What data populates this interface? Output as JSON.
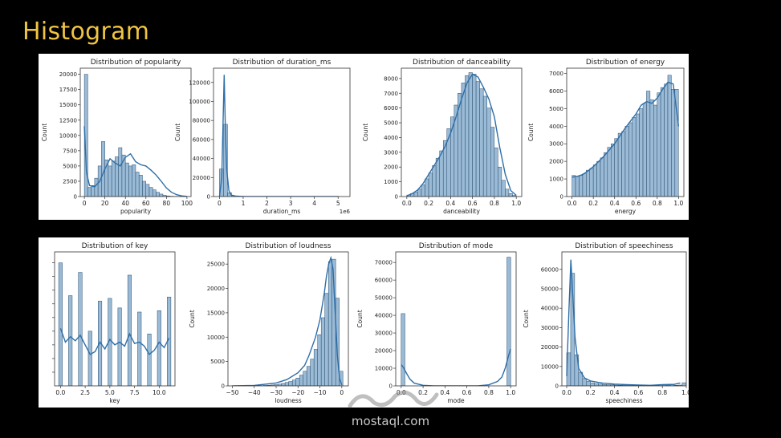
{
  "slide": {
    "title": "Histogram",
    "watermark": "mostaql.com"
  },
  "colors": {
    "bar_fill": "#8fb3d0",
    "bar_stroke": "#2a4f6e",
    "kde": "#2e6ea8",
    "title": "#f0c443"
  },
  "chart_data": [
    {
      "type": "bar",
      "title": "Distribution of popularity",
      "xlabel": "popularity",
      "ylabel": "Count",
      "xlim": [
        -4,
        104
      ],
      "ylim": [
        0,
        21000
      ],
      "xticks": [
        0,
        20,
        40,
        60,
        80,
        100
      ],
      "xticklabels": [
        "0",
        "20",
        "40",
        "60",
        "80",
        "100"
      ],
      "yticks": [
        0,
        2500,
        5000,
        7500,
        10000,
        12500,
        15000,
        17500,
        20000
      ],
      "yticklabels": [
        "0",
        "2500",
        "5000",
        "7500",
        "10000",
        "12500",
        "15000",
        "17500",
        "20000"
      ],
      "bin_start": 0,
      "bin_width": 3.33,
      "values": [
        20000,
        1500,
        1800,
        3000,
        5000,
        9000,
        6000,
        5000,
        5800,
        6500,
        8000,
        6800,
        5500,
        5000,
        5200,
        4000,
        3500,
        2500,
        2000,
        1500,
        1100,
        700,
        400,
        200,
        100,
        50,
        20,
        10,
        5,
        2
      ],
      "kde": {
        "x": [
          0,
          2,
          5,
          10,
          15,
          20,
          25,
          30,
          35,
          40,
          45,
          50,
          55,
          60,
          65,
          70,
          75,
          80,
          85,
          90,
          95,
          100
        ],
        "y": [
          11500,
          4000,
          1800,
          1600,
          2500,
          4500,
          6200,
          5500,
          5000,
          6400,
          7000,
          5700,
          5200,
          5000,
          4300,
          3500,
          2500,
          1400,
          700,
          300,
          100,
          20
        ]
      }
    },
    {
      "type": "bar",
      "title": "Distribution of duration_ms",
      "xlabel": "duration_ms",
      "ylabel": "Count",
      "offset_label": "1e6",
      "xlim": [
        -0.25,
        5.5
      ],
      "ylim": [
        0,
        135000
      ],
      "xticks": [
        0,
        1,
        2,
        3,
        4,
        5
      ],
      "xticklabels": [
        "0",
        "1",
        "2",
        "3",
        "4",
        "5"
      ],
      "yticks": [
        0,
        20000,
        40000,
        60000,
        80000,
        100000,
        120000
      ],
      "yticklabels": [
        "0",
        "20000",
        "40000",
        "60000",
        "80000",
        "100000",
        "120000"
      ],
      "bin_start": 0,
      "bin_width": 0.17,
      "values": [
        29000,
        76000,
        4000,
        400,
        100,
        30,
        10,
        5,
        3,
        2,
        1,
        1,
        1,
        1,
        1,
        1,
        1,
        1,
        1,
        1,
        1,
        1,
        1,
        1,
        1,
        1,
        1,
        1,
        1,
        1
      ],
      "kde": {
        "x": [
          0,
          0.1,
          0.2,
          0.25,
          0.3,
          0.4,
          0.5,
          0.7,
          1.0,
          1.5,
          2,
          3,
          4,
          5
        ],
        "y": [
          0,
          20000,
          128000,
          70000,
          30000,
          6000,
          1500,
          400,
          100,
          20,
          5,
          2,
          1,
          0
        ]
      }
    },
    {
      "type": "bar",
      "title": "Distribution of danceability",
      "xlabel": "danceability",
      "ylabel": "Count",
      "xlim": [
        -0.05,
        1.05
      ],
      "ylim": [
        0,
        8700
      ],
      "xticks": [
        0,
        0.2,
        0.4,
        0.6,
        0.8,
        1.0
      ],
      "xticklabels": [
        "0.0",
        "0.2",
        "0.4",
        "0.6",
        "0.8",
        "1.0"
      ],
      "yticks": [
        0,
        1000,
        2000,
        3000,
        4000,
        5000,
        6000,
        7000,
        8000
      ],
      "yticklabels": [
        "0",
        "1000",
        "2000",
        "3000",
        "4000",
        "5000",
        "6000",
        "7000",
        "8000"
      ],
      "bin_start": 0,
      "bin_width": 0.0333,
      "values": [
        100,
        200,
        300,
        500,
        800,
        1200,
        1600,
        2100,
        2600,
        3100,
        3800,
        4600,
        5400,
        6200,
        7000,
        7700,
        8200,
        8400,
        8300,
        7800,
        7300,
        6800,
        6000,
        4700,
        3300,
        2000,
        1100,
        500,
        200,
        80
      ],
      "kde": {
        "x": [
          0,
          0.05,
          0.1,
          0.15,
          0.2,
          0.25,
          0.3,
          0.35,
          0.4,
          0.45,
          0.5,
          0.55,
          0.6,
          0.65,
          0.7,
          0.75,
          0.8,
          0.85,
          0.9,
          0.95,
          1.0
        ],
        "y": [
          50,
          200,
          450,
          900,
          1500,
          2100,
          2700,
          3400,
          4300,
          5400,
          6600,
          7700,
          8300,
          8100,
          7400,
          6600,
          5400,
          3300,
          1500,
          400,
          80
        ]
      }
    },
    {
      "type": "bar",
      "title": "Distribution of energy",
      "xlabel": "energy",
      "ylabel": "Count",
      "xlim": [
        -0.05,
        1.05
      ],
      "ylim": [
        0,
        7300
      ],
      "xticks": [
        0,
        0.2,
        0.4,
        0.6,
        0.8,
        1.0
      ],
      "xticklabels": [
        "0.0",
        "0.2",
        "0.4",
        "0.6",
        "0.8",
        "1.0"
      ],
      "yticks": [
        0,
        1000,
        2000,
        3000,
        4000,
        5000,
        6000,
        7000
      ],
      "yticklabels": [
        "0",
        "1000",
        "2000",
        "3000",
        "4000",
        "5000",
        "6000",
        "7000"
      ],
      "bin_start": 0,
      "bin_width": 0.0333,
      "values": [
        1200,
        1150,
        1200,
        1300,
        1500,
        1600,
        1800,
        2000,
        2200,
        2500,
        2800,
        3000,
        3300,
        3600,
        3700,
        4000,
        4200,
        4500,
        4700,
        5000,
        5300,
        6000,
        5500,
        5200,
        5900,
        6200,
        6400,
        6900,
        6100,
        6100
      ],
      "kde": {
        "x": [
          0,
          0.05,
          0.1,
          0.15,
          0.2,
          0.3,
          0.4,
          0.5,
          0.6,
          0.65,
          0.7,
          0.75,
          0.8,
          0.85,
          0.9,
          0.95,
          1.0
        ],
        "y": [
          1100,
          1150,
          1250,
          1450,
          1700,
          2300,
          3000,
          3900,
          4700,
          5200,
          5400,
          5300,
          5600,
          6100,
          6500,
          6400,
          4000
        ]
      }
    },
    {
      "type": "bar",
      "title": "Distribution of key",
      "xlabel": "key",
      "ylabel": "",
      "xlim": [
        -0.6,
        11.6
      ],
      "ylim": [
        0,
        9800
      ],
      "xticks": [
        0,
        2.5,
        5,
        7.5,
        10
      ],
      "xticklabels": [
        "0.0",
        "2.5",
        "5.0",
        "7.5",
        "10.0"
      ],
      "yticks": [
        1000,
        2000,
        3000,
        4000,
        5000,
        6000,
        7000,
        8000,
        9000
      ],
      "yticklabels": [],
      "bar_x": [
        0,
        1,
        2,
        3,
        4,
        5,
        6,
        7,
        8,
        9,
        10,
        11
      ],
      "bar_width": 0.37,
      "values": [
        9000,
        6600,
        8300,
        4000,
        6200,
        6400,
        5700,
        8100,
        5400,
        3800,
        5500,
        6500
      ],
      "kde": {
        "x": [
          0,
          0.5,
          1,
          1.5,
          2,
          2.5,
          3,
          3.5,
          4,
          4.5,
          5,
          5.5,
          6,
          6.5,
          7,
          7.5,
          8,
          8.5,
          9,
          9.5,
          10,
          10.5,
          11
        ],
        "y": [
          4200,
          3200,
          3600,
          3300,
          3700,
          3000,
          2300,
          2500,
          3200,
          2700,
          3400,
          3000,
          3200,
          2900,
          3800,
          3100,
          3200,
          2900,
          2300,
          2600,
          3200,
          2800,
          3500
        ]
      }
    },
    {
      "type": "bar",
      "title": "Distribution of loudness",
      "xlabel": "loudness",
      "ylabel": "Count",
      "xlim": [
        -52,
        3
      ],
      "ylim": [
        0,
        27500
      ],
      "xticks": [
        -50,
        -40,
        -30,
        -20,
        -10,
        0
      ],
      "xticklabels": [
        "−50",
        "−40",
        "−30",
        "−20",
        "−10",
        "0"
      ],
      "yticks": [
        0,
        5000,
        10000,
        15000,
        20000,
        25000
      ],
      "yticklabels": [
        "0",
        "5000",
        "10000",
        "15000",
        "20000",
        "25000"
      ],
      "bin_start": -49,
      "bin_width": 1.65,
      "values": [
        5,
        5,
        10,
        10,
        20,
        30,
        40,
        60,
        90,
        130,
        180,
        250,
        350,
        500,
        700,
        900,
        1200,
        1600,
        2200,
        3000,
        4000,
        5500,
        7500,
        10500,
        14000,
        19000,
        25500,
        26000,
        18000,
        3000
      ],
      "kde": {
        "x": [
          -50,
          -40,
          -30,
          -25,
          -20,
          -17,
          -15,
          -12,
          -10,
          -8,
          -7,
          -6,
          -5,
          -4,
          -3,
          -2,
          -1,
          0
        ],
        "y": [
          0,
          80,
          600,
          1300,
          2700,
          4200,
          6200,
          10000,
          13500,
          19000,
          22500,
          25000,
          26300,
          24000,
          15000,
          6000,
          1500,
          200
        ]
      }
    },
    {
      "type": "bar",
      "title": "Distribution of mode",
      "xlabel": "mode",
      "ylabel": "Count",
      "xlim": [
        -0.05,
        1.05
      ],
      "ylim": [
        0,
        76000
      ],
      "xticks": [
        0,
        0.2,
        0.4,
        0.6,
        0.8,
        1.0
      ],
      "xticklabels": [
        "0.0",
        "0.2",
        "0.4",
        "0.6",
        "0.8",
        "1.0"
      ],
      "yticks": [
        0,
        10000,
        20000,
        30000,
        40000,
        50000,
        60000,
        70000
      ],
      "yticklabels": [
        "0",
        "10000",
        "20000",
        "30000",
        "40000",
        "50000",
        "60000",
        "70000"
      ],
      "bar_x": [
        0.017,
        0.983
      ],
      "bar_width": 0.034,
      "values": [
        41000,
        73000
      ],
      "kde": {
        "x": [
          0,
          0.02,
          0.05,
          0.08,
          0.12,
          0.2,
          0.3,
          0.5,
          0.7,
          0.8,
          0.88,
          0.92,
          0.95,
          0.98,
          1.0
        ],
        "y": [
          12000,
          10500,
          7000,
          3800,
          1500,
          300,
          30,
          0,
          30,
          600,
          2500,
          5000,
          10000,
          17000,
          21000
        ]
      }
    },
    {
      "type": "bar",
      "title": "Distribution of speechiness",
      "xlabel": "speechiness",
      "ylabel": "Count",
      "xlim": [
        -0.04,
        1.0
      ],
      "ylim": [
        0,
        69000
      ],
      "xticks": [
        0,
        0.2,
        0.4,
        0.6,
        0.8,
        1.0
      ],
      "xticklabels": [
        "0.0",
        "0.2",
        "0.4",
        "0.6",
        "0.8",
        "1.0"
      ],
      "yticks": [
        0,
        10000,
        20000,
        30000,
        40000,
        50000,
        60000
      ],
      "yticklabels": [
        "0",
        "10000",
        "20000",
        "30000",
        "40000",
        "50000",
        "60000"
      ],
      "bin_start": 0,
      "bin_width": 0.0333,
      "values": [
        17000,
        58000,
        16000,
        7000,
        3800,
        2300,
        1500,
        1200,
        900,
        700,
        600,
        500,
        400,
        300,
        250,
        200,
        150,
        120,
        100,
        100,
        80,
        70,
        60,
        60,
        500,
        400,
        600,
        300,
        400,
        1600
      ],
      "kde": {
        "x": [
          0,
          0.02,
          0.035,
          0.05,
          0.07,
          0.1,
          0.15,
          0.2,
          0.3,
          0.4,
          0.5,
          0.6,
          0.7,
          0.8,
          0.9,
          0.95
        ],
        "y": [
          5000,
          40000,
          65000,
          48000,
          25000,
          9000,
          4000,
          2500,
          1400,
          900,
          600,
          400,
          300,
          600,
          800,
          1500
        ]
      }
    }
  ]
}
